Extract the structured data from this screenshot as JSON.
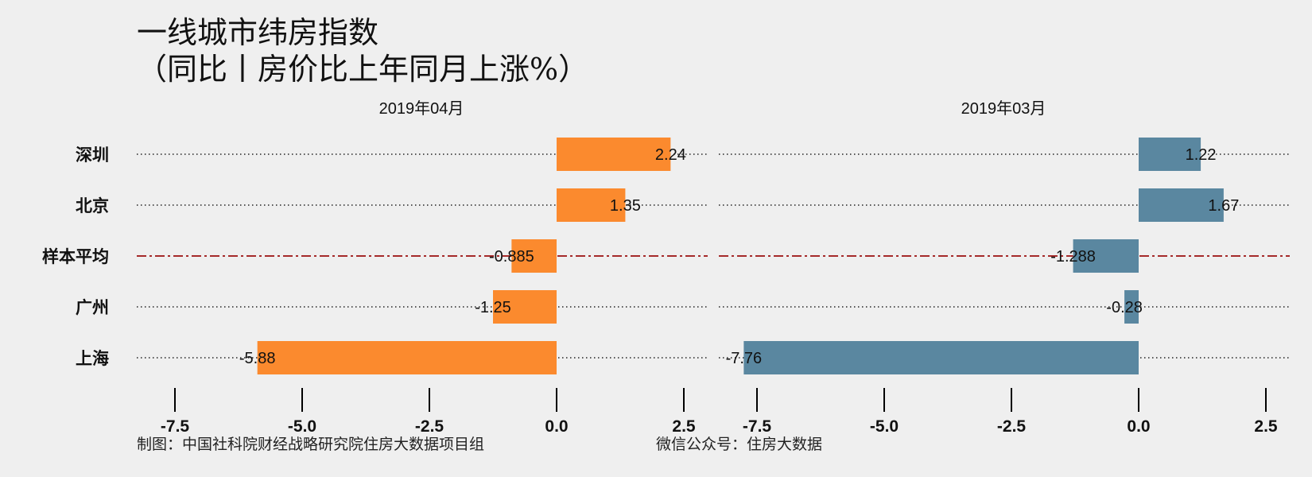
{
  "title_line1": "一线城市纬房指数",
  "title_line2": "（同比丨房价比上年同月上涨%）",
  "caption_left": "制图：中国社科院财经战略研究院住房大数据项目组",
  "caption_right": "微信公众号：住房大数据",
  "colors": {
    "background": "#efefef",
    "panel1_bar": "#fb8a2e",
    "panel2_bar": "#5a87a0",
    "average_line": "#a52a2a",
    "dotted_line": "#222222"
  },
  "chart_data": [
    {
      "type": "bar",
      "orientation": "horizontal",
      "facet_label": "2019年04月",
      "categories": [
        "深圳",
        "北京",
        "样本平均",
        "广州",
        "上海"
      ],
      "values": [
        2.24,
        1.35,
        -0.885,
        -1.25,
        -5.88
      ],
      "value_labels": [
        "2.24",
        "1.35",
        "-0.885",
        "-1.25",
        "-5.88"
      ],
      "average_category": "样本平均",
      "xlim": [
        -7.5,
        2.5
      ],
      "xticks": [
        -7.5,
        -5.0,
        -2.5,
        0.0,
        2.5
      ],
      "xtick_labels": [
        "-7.5",
        "-5.0",
        "-2.5",
        "0.0",
        "2.5"
      ],
      "grid": false
    },
    {
      "type": "bar",
      "orientation": "horizontal",
      "facet_label": "2019年03月",
      "categories": [
        "深圳",
        "北京",
        "样本平均",
        "广州",
        "上海"
      ],
      "values": [
        1.22,
        1.67,
        -1.288,
        -0.28,
        -7.76
      ],
      "value_labels": [
        "1.22",
        "1.67",
        "-1.288",
        "-0.28",
        "-7.76"
      ],
      "average_category": "样本平均",
      "xlim": [
        -7.5,
        2.5
      ],
      "xticks": [
        -7.5,
        -5.0,
        -2.5,
        0.0,
        2.5
      ],
      "xtick_labels": [
        "-7.5",
        "-5.0",
        "-2.5",
        "0.0",
        "2.5"
      ],
      "grid": false
    }
  ]
}
